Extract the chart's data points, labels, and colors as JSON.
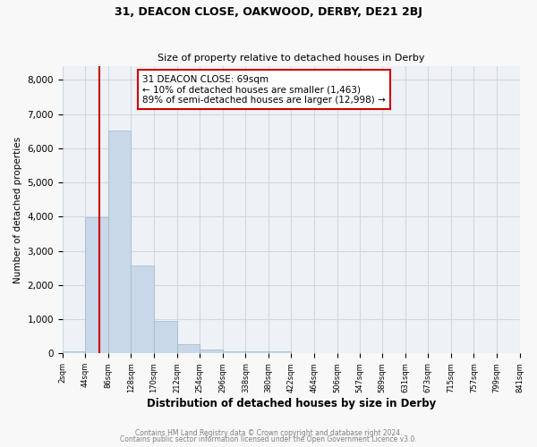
{
  "title_line1": "31, DEACON CLOSE, OAKWOOD, DERBY, DE21 2BJ",
  "title_line2": "Size of property relative to detached houses in Derby",
  "xlabel": "Distribution of detached houses by size in Derby",
  "ylabel": "Number of detached properties",
  "annotation_title": "31 DEACON CLOSE: 69sqm",
  "annotation_line2": "← 10% of detached houses are smaller (1,463)",
  "annotation_line3": "89% of semi-detached houses are larger (12,998) →",
  "property_size_sqm": 69,
  "bin_edges": [
    2,
    44,
    86,
    128,
    170,
    212,
    254,
    296,
    338,
    380,
    422,
    464,
    506,
    547,
    589,
    631,
    673,
    715,
    757,
    799,
    841
  ],
  "bar_heights": [
    55,
    3980,
    6520,
    2570,
    960,
    280,
    115,
    65,
    55,
    65,
    0,
    0,
    0,
    0,
    0,
    0,
    0,
    0,
    0,
    0
  ],
  "bar_color": "#c8d8e8",
  "bar_edge_color": "#a0b8cc",
  "vline_color": "#cc0000",
  "vline_x": 69,
  "annotation_box_color": "#cc0000",
  "ylim": [
    0,
    8400
  ],
  "yticks": [
    0,
    1000,
    2000,
    3000,
    4000,
    5000,
    6000,
    7000,
    8000
  ],
  "grid_color": "#d0d8e0",
  "background_color": "#eef2f6",
  "fig_background_color": "#f8f8f8",
  "footer_line1": "Contains HM Land Registry data © Crown copyright and database right 2024.",
  "footer_line2": "Contains public sector information licensed under the Open Government Licence v3.0."
}
